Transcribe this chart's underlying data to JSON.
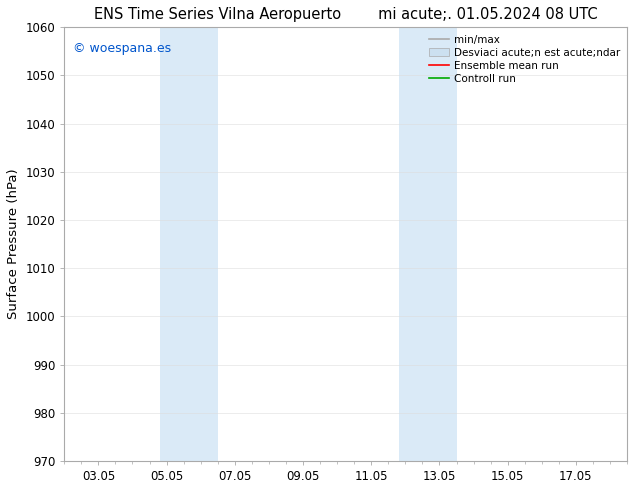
{
  "title_left": "ENS Time Series Vilna Aeropuerto",
  "title_right": "mi acute;. 01.05.2024 08 UTC",
  "ylabel": "Surface Pressure (hPa)",
  "ylim": [
    970,
    1060
  ],
  "yticks": [
    970,
    980,
    990,
    1000,
    1010,
    1020,
    1030,
    1040,
    1050,
    1060
  ],
  "xlim": [
    1.0,
    17.5
  ],
  "xtick_labels": [
    "03.05",
    "05.05",
    "07.05",
    "09.05",
    "11.05",
    "13.05",
    "15.05",
    "17.05"
  ],
  "xtick_positions": [
    2,
    4,
    6,
    8,
    10,
    12,
    14,
    16
  ],
  "watermark": "© woespana.es",
  "watermark_color": "#0055cc",
  "shaded_bands": [
    {
      "x_start": 3.8,
      "x_end": 5.5,
      "color": "#daeaf7"
    },
    {
      "x_start": 10.8,
      "x_end": 12.5,
      "color": "#daeaf7"
    }
  ],
  "legend_labels": [
    "min/max",
    "Desviaci acute;n est acute;ndar",
    "Ensemble mean run",
    "Controll run"
  ],
  "legend_colors": [
    "#aaaaaa",
    "#cce0f0",
    "#ff0000",
    "#00aa00"
  ],
  "bg_color": "#ffffff",
  "spine_color": "#aaaaaa",
  "tick_color": "#555555",
  "title_fontsize": 10.5,
  "tick_fontsize": 8.5,
  "label_fontsize": 9.5,
  "legend_fontsize": 7.5,
  "watermark_fontsize": 9
}
